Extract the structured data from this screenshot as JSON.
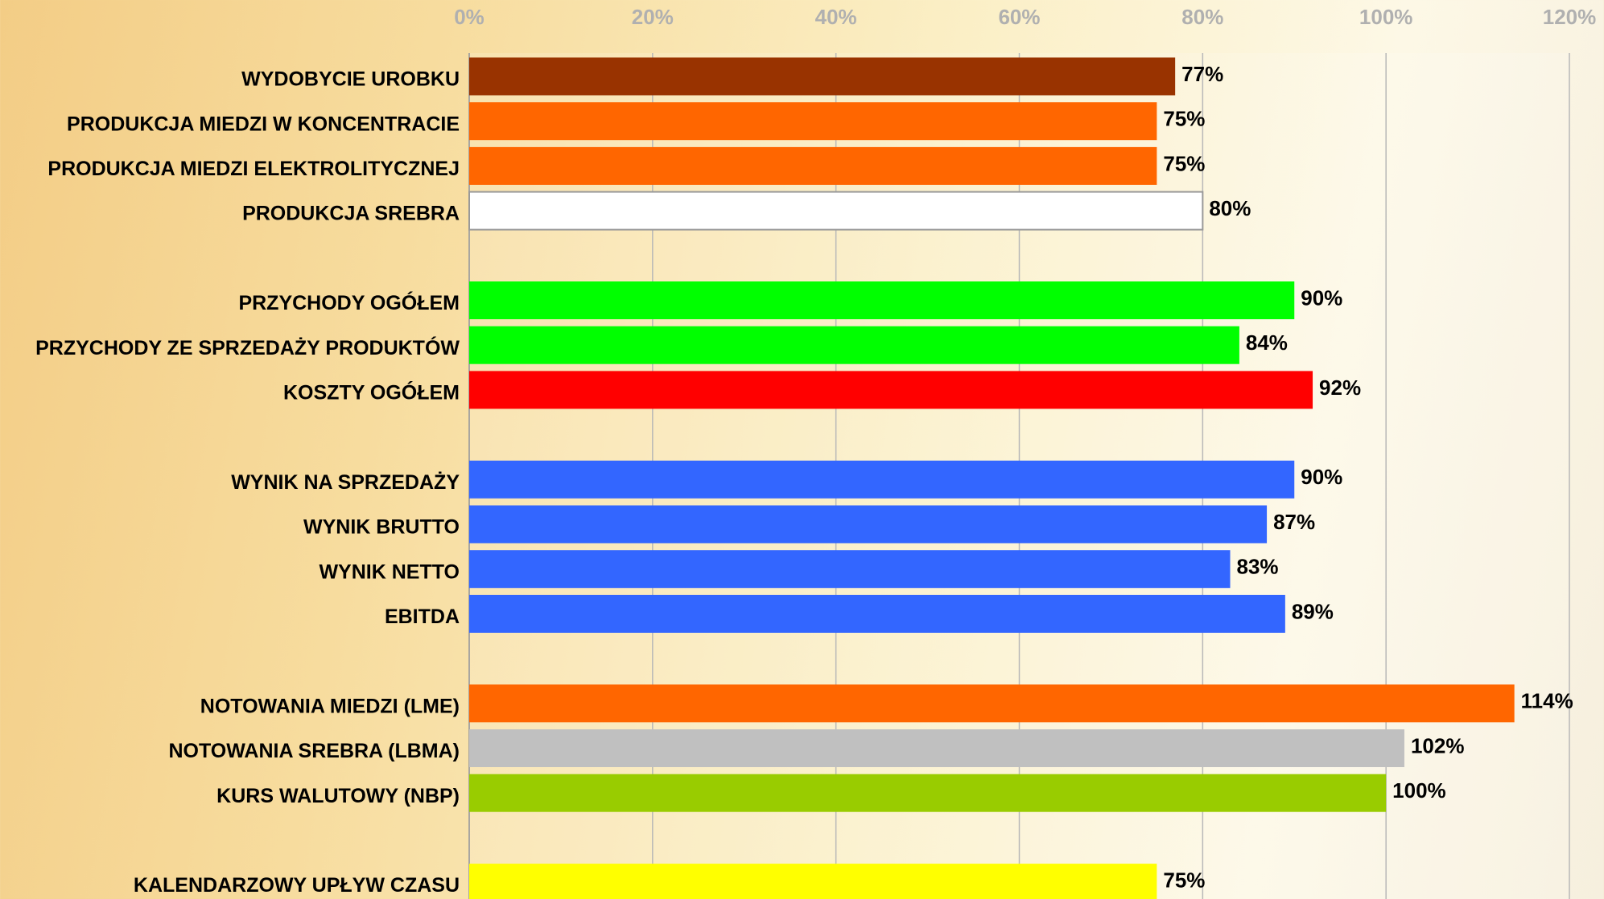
{
  "chart_data": {
    "type": "barh",
    "categories": [
      "WYDOBYCIE UROBKU",
      "PRODUKCJA MIEDZI W KONCENTRACIE",
      "PRODUKCJA MIEDZI ELEKTROLITYCZNEJ",
      "PRODUKCJA SREBRA",
      null,
      "PRZYCHODY OGÓŁEM",
      "PRZYCHODY ZE SPRZEDAŻY PRODUKTÓW",
      "KOSZTY OGÓŁEM",
      null,
      "WYNIK NA SPRZEDAŻY",
      "WYNIK BRUTTO",
      "WYNIK NETTO",
      "EBITDA",
      null,
      "NOTOWANIA MIEDZI (LME)",
      "NOTOWANIA SREBRA (LBMA)",
      "KURS WALUTOWY (NBP)",
      null,
      "KALENDARZOWY UPŁYW  CZASU"
    ],
    "values": [
      77,
      75,
      75,
      80,
      null,
      90,
      84,
      92,
      null,
      90,
      87,
      83,
      89,
      null,
      114,
      102,
      100,
      null,
      75
    ],
    "value_labels": [
      "77%",
      "75%",
      "75%",
      "80%",
      null,
      "90%",
      "84%",
      "92%",
      null,
      "90%",
      "87%",
      "83%",
      "89%",
      null,
      "114%",
      "102%",
      "100%",
      null,
      "75%"
    ],
    "colors": [
      "#993300",
      "#ff6600",
      "#ff6600",
      "#ffffff",
      null,
      "#00ff00",
      "#00ff00",
      "#ff0000",
      null,
      "#3366ff",
      "#3366ff",
      "#3366ff",
      "#3366ff",
      null,
      "#ff6600",
      "#c0c0c0",
      "#99cc00",
      null,
      "#ffff00"
    ],
    "xlim": [
      0,
      120
    ],
    "xticks": [
      {
        "value": 0,
        "label": "0%"
      },
      {
        "value": 20,
        "label": "20%"
      },
      {
        "value": 40,
        "label": "40%"
      },
      {
        "value": 60,
        "label": "60%"
      },
      {
        "value": 80,
        "label": "80%"
      },
      {
        "value": 100,
        "label": "100%"
      },
      {
        "value": 120,
        "label": "120%"
      }
    ],
    "grid": true
  }
}
